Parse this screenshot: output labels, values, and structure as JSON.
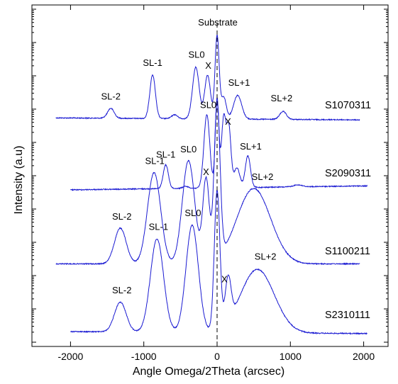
{
  "chart_data": {
    "type": "line",
    "xlabel": "Angle Omega/2Theta (arcsec)",
    "ylabel": "Intensity (a.u)",
    "xlim": [
      -2300,
      2300
    ],
    "x_ticks": [
      -2000,
      -1000,
      0,
      1000,
      2000
    ],
    "x_tick_labels": [
      "-2000",
      "-1000",
      "0",
      "1000",
      "2000"
    ],
    "y_log_scale": true,
    "y_tick_labels": [],
    "grid": false,
    "legend": "none",
    "line_color": "#1a1ad2",
    "reference_line": {
      "x": 0,
      "style": "dashed",
      "label": "Substrate"
    },
    "series": [
      {
        "name": "S1070311",
        "x_range": [
          -2200,
          1950
        ],
        "baseline": [
          0.12,
          0.11
        ],
        "peaks": [
          {
            "x": -1450,
            "h": 0.05,
            "w": 45
          },
          {
            "x": -880,
            "h": 0.22,
            "w": 38
          },
          {
            "x": -580,
            "h": 0.02,
            "w": 40
          },
          {
            "x": -290,
            "h": 0.26,
            "w": 45
          },
          {
            "x": -130,
            "h": 0.22,
            "w": 40
          },
          {
            "x": 0,
            "h": 0.42,
            "w": 28
          },
          {
            "x": 90,
            "h": 0.11,
            "w": 35
          },
          {
            "x": 280,
            "h": 0.12,
            "w": 55
          },
          {
            "x": 900,
            "h": 0.04,
            "w": 45
          }
        ],
        "annotations": [
          {
            "text": "SL-2",
            "x": -1450
          },
          {
            "text": "SL-1",
            "x": -880
          },
          {
            "text": "SL0",
            "x": -280
          },
          {
            "text": "X",
            "x": -120
          },
          {
            "text": "SL+1",
            "x": 300
          },
          {
            "text": "SL+2",
            "x": 880
          }
        ]
      },
      {
        "name": "S2090311",
        "x_range": [
          -2000,
          2050
        ],
        "baseline": [
          0.1,
          0.12
        ],
        "peaks": [
          {
            "x": -700,
            "h": 0.12,
            "w": 35
          },
          {
            "x": -430,
            "h": 0.01,
            "w": 40
          },
          {
            "x": -140,
            "h": 0.37,
            "w": 40
          },
          {
            "x": 0,
            "h": 0.45,
            "w": 25
          },
          {
            "x": 90,
            "h": 0.35,
            "w": 30
          },
          {
            "x": 160,
            "h": 0.3,
            "w": 30
          },
          {
            "x": 270,
            "h": 0.1,
            "w": 40
          },
          {
            "x": 420,
            "h": 0.16,
            "w": 35
          },
          {
            "x": 1100,
            "h": 0.01,
            "w": 60
          }
        ],
        "annotations": [
          {
            "text": "SL-1",
            "x": -700
          },
          {
            "text": "SL0",
            "x": -120
          },
          {
            "text": "X",
            "x": 150
          },
          {
            "text": "SL+1",
            "x": 460
          }
        ]
      },
      {
        "name": "S1100211",
        "x_range": [
          -2200,
          1950
        ],
        "baseline": [
          0.12,
          0.12
        ],
        "peaks": [
          {
            "x": -1320,
            "h": 0.18,
            "w": 80
          },
          {
            "x": -860,
            "h": 0.46,
            "w": 90
          },
          {
            "x": -390,
            "h": 0.52,
            "w": 85
          },
          {
            "x": -150,
            "h": 0.42,
            "w": 45
          },
          {
            "x": 0,
            "h": 0.78,
            "w": 40
          },
          {
            "x": 500,
            "h": 0.38,
            "w": 230
          }
        ],
        "annotations": [
          {
            "text": "SL-2",
            "x": -1300
          },
          {
            "text": "SL-1",
            "x": -850
          },
          {
            "text": "SL0",
            "x": -390
          },
          {
            "text": "X",
            "x": -150
          },
          {
            "text": "SL+2",
            "x": 620
          }
        ]
      },
      {
        "name": "S2310111",
        "x_range": [
          -2000,
          2050
        ],
        "baseline": [
          0.1,
          0.09
        ],
        "peaks": [
          {
            "x": -1320,
            "h": 0.15,
            "w": 80
          },
          {
            "x": -820,
            "h": 0.47,
            "w": 90
          },
          {
            "x": -340,
            "h": 0.54,
            "w": 85
          },
          {
            "x": 0,
            "h": 0.7,
            "w": 38
          },
          {
            "x": 150,
            "h": 0.22,
            "w": 40
          },
          {
            "x": 550,
            "h": 0.32,
            "w": 230
          }
        ],
        "annotations": [
          {
            "text": "SL-2",
            "x": -1300
          },
          {
            "text": "SL-1",
            "x": -800
          },
          {
            "text": "SL0",
            "x": -330
          },
          {
            "text": "X",
            "x": 100
          },
          {
            "text": "SL+2",
            "x": 660
          }
        ]
      }
    ]
  }
}
